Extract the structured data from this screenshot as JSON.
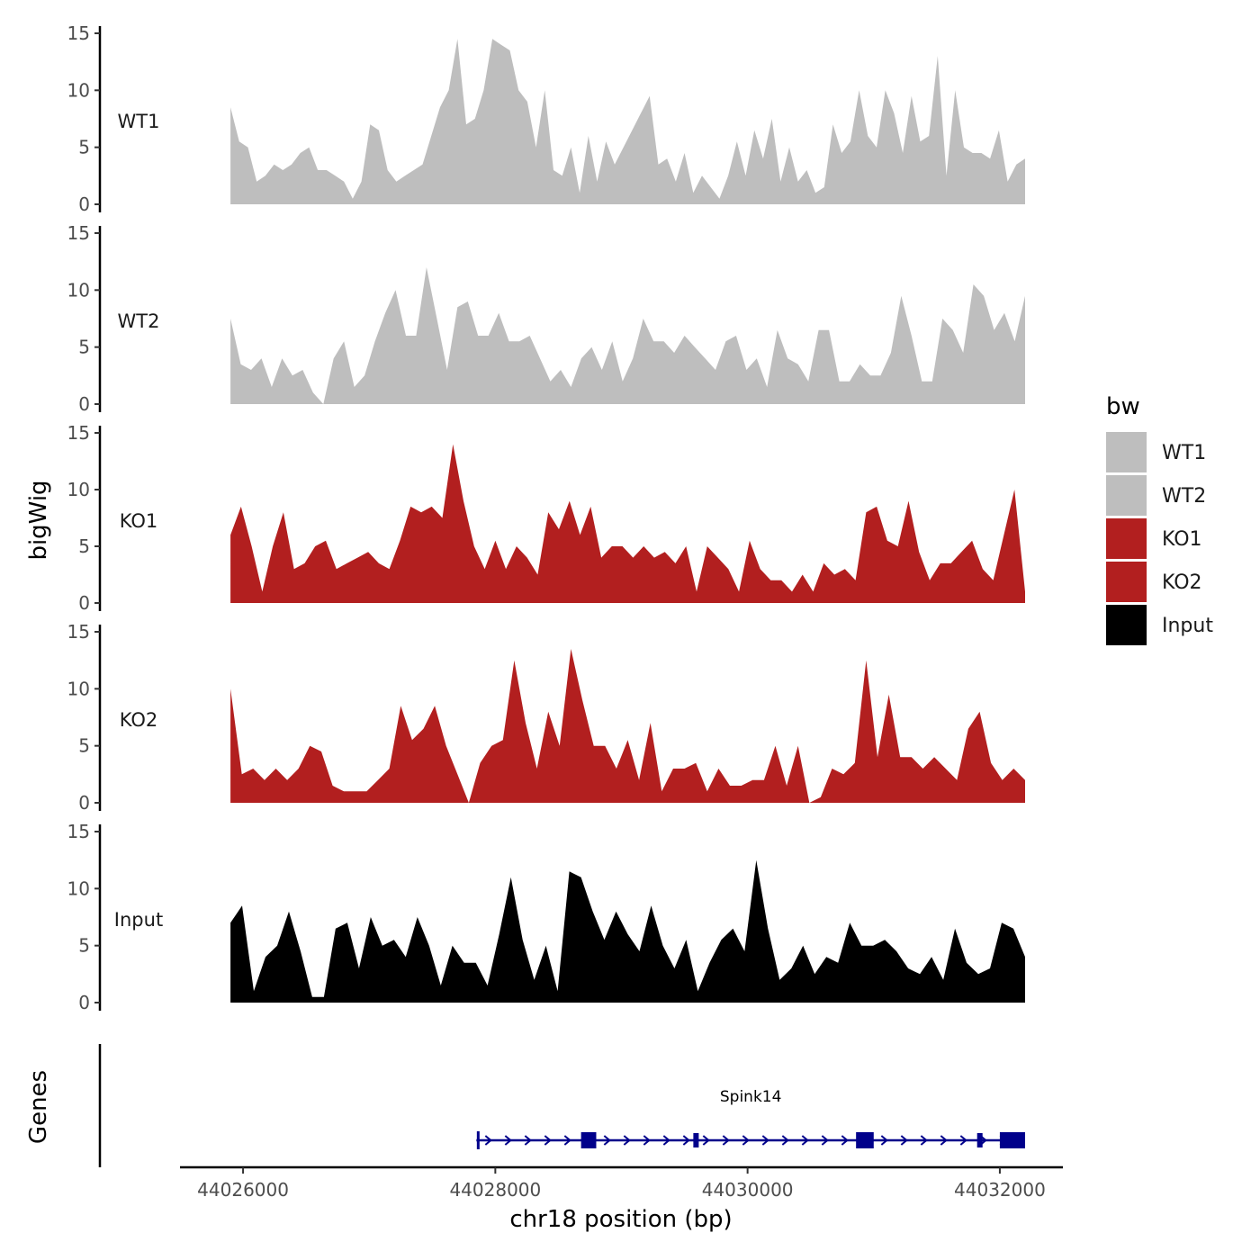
{
  "chart_data": {
    "type": "area",
    "ylabel": "bigWig",
    "genes_label": "Genes",
    "xlabel": "chr18 position (bp)",
    "x_ticks": [
      44026000,
      44028000,
      44030000,
      44032000
    ],
    "x_range": [
      44025500,
      44032500
    ],
    "y_ticks": [
      0,
      5,
      10,
      15
    ],
    "ylim": [
      0,
      15
    ],
    "data_x_range": [
      44025900,
      44032200
    ],
    "legend": {
      "title": "bw",
      "entries": [
        {
          "label": "WT1",
          "color": "#bebebe"
        },
        {
          "label": "WT2",
          "color": "#bebebe"
        },
        {
          "label": "KO1",
          "color": "#b21f1f"
        },
        {
          "label": "KO2",
          "color": "#b21f1f"
        },
        {
          "label": "Input",
          "color": "#000000"
        }
      ]
    },
    "series": [
      {
        "name": "WT1",
        "color": "#bebebe",
        "values": [
          8.5,
          5.5,
          5,
          2,
          2.5,
          3.5,
          3,
          3.5,
          4.5,
          5,
          3,
          3,
          2.5,
          2,
          0.5,
          2,
          7,
          6.5,
          3,
          2,
          2.5,
          3,
          3.5,
          6,
          8.5,
          10,
          14.5,
          7,
          7.5,
          10,
          14.5,
          14,
          13.5,
          10,
          9,
          5,
          10,
          3,
          2.5,
          5,
          1,
          6,
          2,
          5.5,
          3.5,
          5,
          6.5,
          8,
          9.5,
          3.5,
          4,
          2,
          4.5,
          1,
          2.5,
          1.5,
          0.5,
          2.5,
          5.5,
          2.5,
          6.5,
          4,
          7.5,
          2,
          5,
          2,
          3,
          1,
          1.5,
          7,
          4.5,
          5.5,
          10,
          6,
          5,
          10,
          8,
          4.5,
          9.5,
          5.5,
          6,
          13,
          2.5,
          10,
          5,
          4.5,
          4.5,
          4,
          6.5,
          2,
          3.5,
          4
        ]
      },
      {
        "name": "WT2",
        "color": "#bebebe",
        "values": [
          7.5,
          3.5,
          3,
          4,
          1.5,
          4,
          2.5,
          3,
          1,
          0,
          4,
          5.5,
          1.5,
          2.5,
          5.5,
          8,
          10,
          6,
          6,
          12,
          7.5,
          3,
          8.5,
          9,
          6,
          6,
          8,
          5.5,
          5.5,
          6,
          4,
          2,
          3,
          1.5,
          4,
          5,
          3,
          5.5,
          2,
          4,
          7.5,
          5.5,
          5.5,
          4.5,
          6,
          5,
          4,
          3,
          5.5,
          6,
          3,
          4,
          1.5,
          6.5,
          4,
          3.5,
          2,
          6.5,
          6.5,
          2,
          2,
          3.5,
          2.5,
          2.5,
          4.5,
          9.5,
          6,
          2,
          2,
          7.5,
          6.5,
          4.5,
          10.5,
          9.5,
          6.5,
          8,
          5.5,
          9.5
        ]
      },
      {
        "name": "KO1",
        "color": "#b21f1f",
        "values": [
          6,
          8.5,
          5,
          1,
          5,
          8,
          3,
          3.5,
          5,
          5.5,
          3,
          3.5,
          4,
          4.5,
          3.5,
          3,
          5.5,
          8.5,
          8,
          8.5,
          7.5,
          14,
          9,
          5,
          3,
          5.5,
          3,
          5,
          4,
          2.5,
          8,
          6.5,
          9,
          6,
          8.5,
          4,
          5,
          5,
          4,
          5,
          4,
          4.5,
          3.5,
          5,
          1,
          5,
          4,
          3,
          1,
          5.5,
          3,
          2,
          2,
          1,
          2.5,
          1,
          3.5,
          2.5,
          3,
          2,
          8,
          8.5,
          5.5,
          5,
          9,
          4.5,
          2,
          3.5,
          3.5,
          4.5,
          5.5,
          3,
          2,
          6,
          10,
          1
        ]
      },
      {
        "name": "KO2",
        "color": "#b21f1f",
        "values": [
          10,
          2.5,
          3,
          2,
          3,
          2,
          3,
          5,
          4.5,
          1.5,
          1,
          1,
          1,
          2,
          3,
          8.5,
          5.5,
          6.5,
          8.5,
          5,
          2.5,
          0,
          3.5,
          5,
          5.5,
          12.5,
          7,
          3,
          8,
          5,
          13.5,
          9,
          5,
          5,
          3,
          5.5,
          2,
          7,
          1,
          3,
          3,
          3.5,
          1,
          3,
          1.5,
          1.5,
          2,
          2,
          5,
          1.5,
          5,
          0,
          0.5,
          3,
          2.5,
          3.5,
          12.5,
          4,
          9.5,
          4,
          4,
          3,
          4,
          3,
          2,
          6.5,
          8,
          3.5,
          2,
          3,
          2
        ]
      },
      {
        "name": "Input",
        "color": "#000000",
        "values": [
          7,
          8.5,
          1,
          4,
          5,
          8,
          4.5,
          0.5,
          0.5,
          6.5,
          7,
          3,
          7.5,
          5,
          5.5,
          4,
          7.5,
          5,
          1.5,
          5,
          3.5,
          3.5,
          1.5,
          6,
          11,
          5.5,
          2,
          5,
          1,
          11.5,
          11,
          8,
          5.5,
          8,
          6,
          4.5,
          8.5,
          5,
          3,
          5.5,
          1,
          3.5,
          5.5,
          6.5,
          4.5,
          12.5,
          6.5,
          2,
          3,
          5,
          2.5,
          4,
          3.5,
          7,
          5,
          5,
          5.5,
          4.5,
          3,
          2.5,
          4,
          2,
          6.5,
          3.5,
          2.5,
          3,
          7,
          6.5,
          4
        ]
      }
    ],
    "genes": [
      {
        "name": "Spink14",
        "strand": "+",
        "start": 44027850,
        "end": 44032200,
        "color": "#00008b",
        "exons": [
          {
            "start": 44028680,
            "end": 44028800
          },
          {
            "start": 44029570,
            "end": 44029600
          },
          {
            "start": 44030860,
            "end": 44031000
          },
          {
            "start": 44031820,
            "end": 44031850
          },
          {
            "start": 44032000,
            "end": 44032200
          }
        ]
      }
    ]
  }
}
